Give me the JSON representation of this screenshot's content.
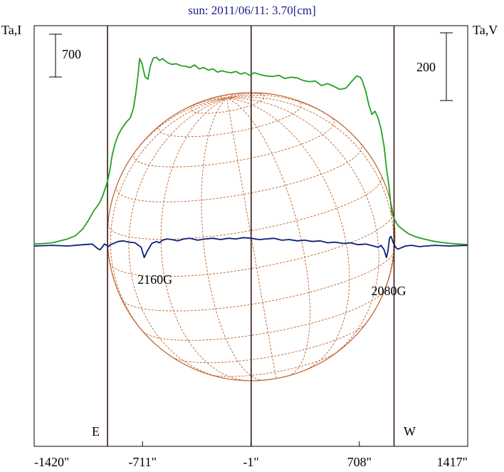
{
  "chart_data": {
    "type": "line",
    "title": "sun: 2011/06/11: 3.70[cm]",
    "left_axis_label": "Ta,I",
    "right_axis_label": "Ta,V",
    "scale_bar_left": "700",
    "scale_bar_right": "200",
    "x_tick_labels": [
      "-1420\"",
      "-711\"",
      "-1\"",
      "708\"",
      "1417\""
    ],
    "x_ticks": [
      -1420,
      -711,
      -1,
      708,
      1417
    ],
    "xlim": [
      -1420,
      1417
    ],
    "limb_markers": {
      "east": -940,
      "west": 935
    },
    "limb_labels": {
      "east": "E",
      "west": "W"
    },
    "annotations": [
      {
        "text": "2160G",
        "x": -630
      },
      {
        "text": "2080G",
        "x": 900
      }
    ],
    "colors": {
      "stokes_I": "#22a022",
      "stokes_V": "#0d1f7a",
      "disk": "#c0602a",
      "markers": "#3a1a1a"
    },
    "series": [
      {
        "color": "#22a022",
        "x": [
          -1420,
          -1350,
          -1300,
          -1250,
          -1200,
          -1150,
          -1100,
          -1060,
          -1030,
          -1010,
          -990,
          -975,
          -960,
          -945,
          -935,
          -925,
          -910,
          -890,
          -870,
          -850,
          -820,
          -790,
          -770,
          -755,
          -740,
          -730,
          -715,
          -695,
          -675,
          -660,
          -640,
          -620,
          -600,
          -580,
          -550,
          -520,
          -490,
          -460,
          -430,
          -400,
          -370,
          -340,
          -310,
          -280,
          -250,
          -220,
          -190,
          -160,
          -130,
          -100,
          -70,
          -40,
          -10,
          20,
          60,
          100,
          140,
          180,
          220,
          260,
          300,
          340,
          380,
          420,
          460,
          500,
          540,
          580,
          620,
          660,
          690,
          715,
          730,
          750,
          770,
          790,
          810,
          830,
          850,
          870,
          885,
          900,
          910,
          920,
          935,
          950,
          965,
          990,
          1030,
          1080,
          1130,
          1180,
          1230,
          1300,
          1360,
          1417
        ],
        "y": [
          0.03,
          0.04,
          0.05,
          0.08,
          0.11,
          0.16,
          0.27,
          0.42,
          0.55,
          0.61,
          0.68,
          0.76,
          0.86,
          0.97,
          1.06,
          1.18,
          1.41,
          1.6,
          1.73,
          1.82,
          1.92,
          2.0,
          2.15,
          2.38,
          2.67,
          2.92,
          2.85,
          2.64,
          2.6,
          2.8,
          2.93,
          2.94,
          2.89,
          2.92,
          2.86,
          2.83,
          2.84,
          2.81,
          2.8,
          2.78,
          2.82,
          2.76,
          2.78,
          2.74,
          2.76,
          2.71,
          2.73,
          2.71,
          2.7,
          2.72,
          2.68,
          2.7,
          2.66,
          2.7,
          2.67,
          2.65,
          2.64,
          2.66,
          2.61,
          2.63,
          2.62,
          2.58,
          2.56,
          2.57,
          2.5,
          2.53,
          2.49,
          2.44,
          2.46,
          2.57,
          2.65,
          2.63,
          2.56,
          2.41,
          2.2,
          2.05,
          2.1,
          2.0,
          1.82,
          1.55,
          1.22,
          0.97,
          0.74,
          0.52,
          0.43,
          0.36,
          0.31,
          0.26,
          0.19,
          0.14,
          0.11,
          0.08,
          0.06,
          0.04,
          0.03,
          0.02
        ]
      },
      {
        "color": "#0d1f7a",
        "x": [
          -1420,
          -1300,
          -1200,
          -1100,
          -1040,
          -1010,
          -990,
          -975,
          -960,
          -945,
          -935,
          -920,
          -900,
          -870,
          -840,
          -800,
          -760,
          -720,
          -700,
          -680,
          -650,
          -620,
          -600,
          -580,
          -550,
          -520,
          -480,
          -440,
          -400,
          -350,
          -300,
          -250,
          -200,
          -150,
          -100,
          -50,
          0,
          50,
          100,
          150,
          200,
          250,
          300,
          350,
          400,
          450,
          500,
          550,
          600,
          650,
          700,
          750,
          800,
          830,
          850,
          870,
          885,
          895,
          905,
          915,
          930,
          945,
          960,
          980,
          1010,
          1050,
          1100,
          1150,
          1200,
          1300,
          1417
        ],
        "y": [
          0.0,
          0.01,
          0.0,
          0.02,
          0.03,
          -0.03,
          -0.06,
          -0.02,
          0.03,
          0.01,
          -0.01,
          0.02,
          0.04,
          0.07,
          0.08,
          0.06,
          0.05,
          -0.02,
          -0.18,
          -0.08,
          0.04,
          0.07,
          0.05,
          0.09,
          0.11,
          0.1,
          0.08,
          0.11,
          0.12,
          0.09,
          0.11,
          0.12,
          0.1,
          0.12,
          0.11,
          0.13,
          0.12,
          0.1,
          0.11,
          0.12,
          0.09,
          0.1,
          0.08,
          0.09,
          0.07,
          0.08,
          0.05,
          0.06,
          0.04,
          0.05,
          0.02,
          0.03,
          0.0,
          -0.02,
          0.01,
          -0.06,
          -0.18,
          -0.08,
          0.12,
          0.15,
          0.05,
          -0.02,
          -0.05,
          -0.03,
          0.0,
          0.01,
          -0.01,
          0.0,
          0.01,
          0.0,
          0.01
        ]
      }
    ]
  }
}
